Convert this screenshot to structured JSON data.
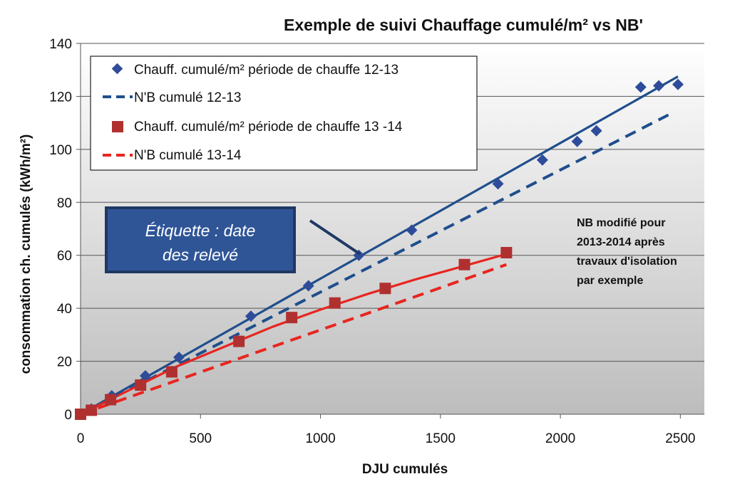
{
  "chart_data": {
    "type": "line",
    "title": "Exemple de suivi Chauffage cumulé/m² vs NB'",
    "xlabel": "DJU cumulés",
    "ylabel": "consommation ch.  cumulés (kWh/m²)",
    "xlim": [
      0,
      2600
    ],
    "ylim": [
      0,
      140
    ],
    "xticks": [
      "0",
      "500",
      "1000",
      "1500",
      "2000",
      "2500"
    ],
    "yticks": [
      "0",
      "20",
      "40",
      "60",
      "80",
      "100",
      "120",
      "140"
    ],
    "grid": true,
    "legend_position": "top-left",
    "series": [
      {
        "name": "Chauff. cumulé/m² période de chauffe 12-13",
        "kind": "points",
        "marker": "diamond",
        "color": "#2E4C9A",
        "x": [
          0,
          45,
          130,
          270,
          410,
          710,
          950,
          1160,
          1380,
          1740,
          1925,
          2070,
          2150,
          2335,
          2410,
          2490
        ],
        "y": [
          0,
          2,
          7,
          14.5,
          21.5,
          37,
          48.5,
          60,
          69.5,
          87,
          96,
          103,
          107,
          123.5,
          124,
          124.5
        ]
      },
      {
        "name": "N'B cumulé 12-13",
        "kind": "line",
        "dashed": true,
        "color": "#1F4E8C",
        "x": [
          0,
          2450
        ],
        "y": [
          0,
          113
        ]
      },
      {
        "name": "Chauff. cumulé/m² période de chauffe 13 -14",
        "kind": "points",
        "marker": "square",
        "color": "#B03030",
        "x": [
          0,
          45,
          125,
          250,
          380,
          660,
          880,
          1060,
          1270,
          1600,
          1775
        ],
        "y": [
          0,
          1.5,
          5.5,
          11,
          16,
          27.5,
          36.5,
          42,
          47.5,
          56.5,
          61
        ]
      },
      {
        "name": "N'B cumulé 13-14",
        "kind": "line",
        "dashed": true,
        "color": "#E8251F",
        "x": [
          0,
          1775
        ],
        "y": [
          0,
          56.5
        ]
      }
    ],
    "trendlines": [
      {
        "color": "#1F4E8C",
        "x": [
          0,
          2490
        ],
        "y": [
          0,
          127.5
        ]
      },
      {
        "color": "#E8251F",
        "x": [
          0,
          200,
          400,
          600,
          800,
          1000,
          1200,
          1400,
          1600,
          1775
        ],
        "y": [
          0,
          9,
          18,
          25.5,
          33,
          39.5,
          45.5,
          51,
          56,
          60.5
        ]
      }
    ],
    "annotations": {
      "callout_line1": "Étiquette : date",
      "callout_line2": "des relevé",
      "note_lines": [
        "NB modifié pour",
        "2013-2014 après",
        "travaux d'isolation",
        "par exemple"
      ]
    },
    "colors": {
      "plot_top": "#FFFFFF",
      "plot_bottom": "#BDBDBD",
      "callout_fill": "#2F5597",
      "callout_border": "#1F3864"
    }
  }
}
